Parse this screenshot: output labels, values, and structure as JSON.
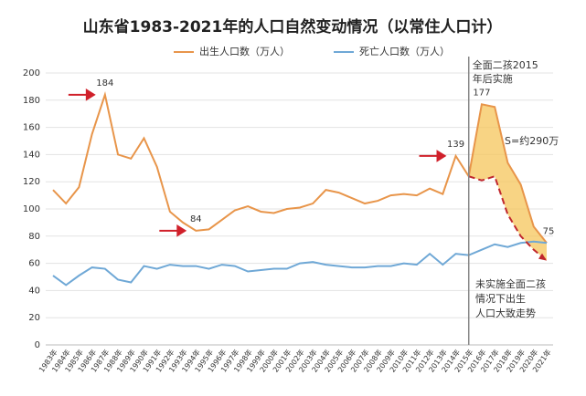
{
  "chart_data": {
    "type": "line",
    "title": "山东省1983-2021年的人口自然变动情况（以常住人口计）",
    "categories": [
      "1983年",
      "1984年",
      "1985年",
      "1986年",
      "1987年",
      "1988年",
      "1989年",
      "1990年",
      "1991年",
      "1992年",
      "1993年",
      "1994年",
      "1995年",
      "1996年",
      "1997年",
      "1998年",
      "1999年",
      "2000年",
      "2001年",
      "2002年",
      "2003年",
      "2004年",
      "2005年",
      "2006年",
      "2007年",
      "2008年",
      "2009年",
      "2010年",
      "2011年",
      "2012年",
      "2013年",
      "2014年",
      "2015年",
      "2016年",
      "2017年",
      "2018年",
      "2019年",
      "2020年",
      "2021年"
    ],
    "series": [
      {
        "name": "出生人口数（万人）",
        "color": "#e8954a",
        "values": [
          114,
          104,
          116,
          155,
          184,
          140,
          137,
          152,
          131,
          98,
          90,
          84,
          85,
          92,
          99,
          102,
          98,
          97,
          100,
          101,
          104,
          114,
          112,
          108,
          104,
          106,
          110,
          111,
          110,
          115,
          111,
          139,
          124,
          177,
          175,
          134,
          118,
          87,
          75
        ]
      },
      {
        "name": "死亡人口数（万人）",
        "color": "#6fa8d6",
        "values": [
          51,
          44,
          51,
          57,
          56,
          48,
          46,
          58,
          56,
          59,
          58,
          58,
          56,
          59,
          58,
          54,
          55,
          56,
          56,
          60,
          61,
          59,
          58,
          57,
          57,
          58,
          58,
          60,
          59,
          67,
          59,
          67,
          66,
          70,
          74,
          72,
          75,
          76,
          75
        ]
      }
    ],
    "projection": {
      "color": "#c0272d",
      "values": [
        null,
        null,
        null,
        null,
        null,
        null,
        null,
        null,
        null,
        null,
        null,
        null,
        null,
        null,
        null,
        null,
        null,
        null,
        null,
        null,
        null,
        null,
        null,
        null,
        null,
        null,
        null,
        null,
        null,
        null,
        null,
        null,
        124,
        121,
        124,
        96,
        80,
        70,
        62
      ]
    },
    "shade_color": "#f6c65b",
    "ylim": [
      0,
      200
    ],
    "yticks": [
      0,
      20,
      40,
      60,
      80,
      100,
      120,
      140,
      160,
      180,
      200
    ],
    "grid": true,
    "annotations": {
      "policy": [
        "全面二孩2015",
        "年后实施"
      ],
      "area": "S=约290万",
      "projection_note": [
        "未实施全面二孩",
        "情况下出生",
        "人口大致走势"
      ]
    }
  }
}
